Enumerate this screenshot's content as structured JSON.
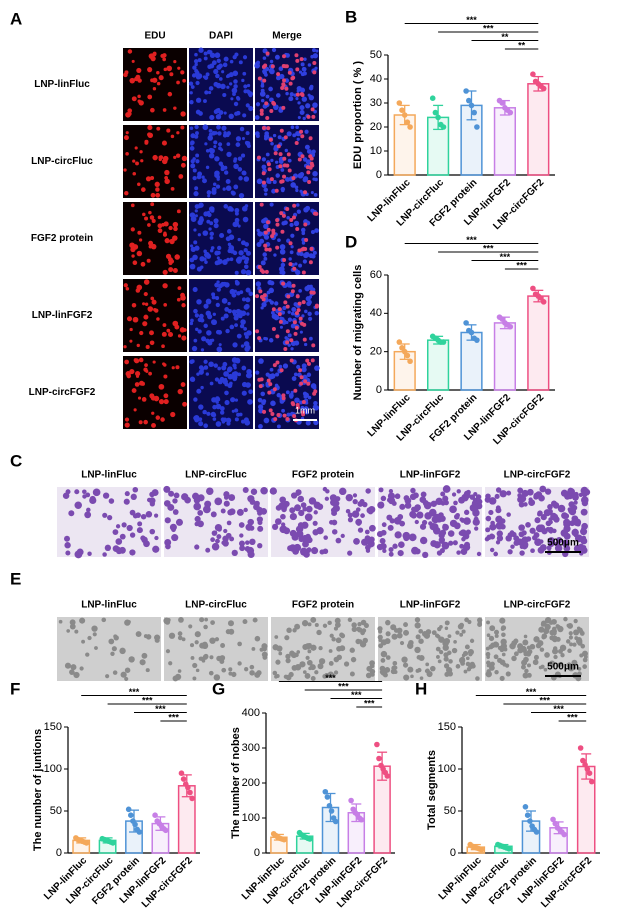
{
  "figure_a": {
    "label": "A",
    "columns": [
      "EDU",
      "DAPI",
      "Merge"
    ],
    "rows": [
      "LNP-linFluc",
      "LNP-circFluc",
      "FGF2 protein",
      "LNP-linFGF2",
      "LNP-circFGF2"
    ],
    "scale_bar": "1mm"
  },
  "figure_c": {
    "label": "C",
    "columns": [
      "LNP-linFluc",
      "LNP-circFluc",
      "FGF2 protein",
      "LNP-linFGF2",
      "LNP-circFGF2"
    ],
    "scale_bar": "500μm"
  },
  "figure_e": {
    "label": "E",
    "columns": [
      "LNP-linFluc",
      "LNP-circFluc",
      "FGF2 protein",
      "LNP-linFGF2",
      "LNP-circFGF2"
    ],
    "scale_bar": "500μm"
  },
  "chart_data": [
    {
      "type": "bar",
      "label": "B",
      "ylabel": "EDU proportion ( % )",
      "categories": [
        "LNP-linFluc",
        "LNP-circFluc",
        "FGF2 protein",
        "LNP-linFGF2",
        "LNP-circFGF2"
      ],
      "colors": [
        "#f4a85a",
        "#2fd39c",
        "#4f93d6",
        "#c77fe6",
        "#ee4f82"
      ],
      "values": [
        25,
        24,
        29,
        28,
        38
      ],
      "errors": [
        4,
        5,
        6,
        3,
        3
      ],
      "points": [
        [
          30,
          27,
          25,
          22,
          20
        ],
        [
          32,
          26,
          24,
          21,
          20
        ],
        [
          35,
          31,
          29,
          26,
          20
        ],
        [
          31,
          30,
          28,
          27,
          26
        ],
        [
          42,
          39,
          38,
          37,
          36
        ]
      ],
      "ylim": [
        0,
        50
      ],
      "yticks": [
        0,
        10,
        20,
        30,
        40,
        50
      ],
      "significance": [
        "***",
        "***",
        "**",
        "**"
      ]
    },
    {
      "type": "bar",
      "label": "D",
      "ylabel": "Number of migrating cells",
      "categories": [
        "LNP-linFluc",
        "LNP-circFluc",
        "FGF2 protein",
        "LNP-linFGF2",
        "LNP-circFGF2"
      ],
      "colors": [
        "#f4a85a",
        "#2fd39c",
        "#4f93d6",
        "#c77fe6",
        "#ee4f82"
      ],
      "values": [
        20,
        26,
        30,
        35,
        49
      ],
      "errors": [
        4,
        2,
        4,
        3,
        3
      ],
      "points": [
        [
          25,
          22,
          20,
          18,
          15
        ],
        [
          28,
          27,
          26,
          25,
          25
        ],
        [
          35,
          31,
          30,
          27,
          26
        ],
        [
          38,
          37,
          35,
          34,
          33
        ],
        [
          53,
          50,
          49,
          48,
          46
        ]
      ],
      "ylim": [
        0,
        60
      ],
      "yticks": [
        0,
        20,
        40,
        60
      ],
      "significance": [
        "***",
        "***",
        "***",
        "***"
      ]
    },
    {
      "type": "bar",
      "label": "F",
      "ylabel": "The number of juntions",
      "categories": [
        "LNP-linFluc",
        "LNP-circFluc",
        "FGF2 protein",
        "LNP-linFGF2",
        "LNP-circFGF2"
      ],
      "colors": [
        "#f4a85a",
        "#2fd39c",
        "#4f93d6",
        "#c77fe6",
        "#ee4f82"
      ],
      "values": [
        15,
        15,
        38,
        35,
        80
      ],
      "errors": [
        3,
        3,
        13,
        8,
        13
      ],
      "points": [
        [
          18,
          16,
          15,
          14,
          13,
          12
        ],
        [
          17,
          16,
          15,
          14,
          13,
          12
        ],
        [
          52,
          45,
          38,
          34,
          28,
          25
        ],
        [
          45,
          38,
          35,
          32,
          29,
          27
        ],
        [
          95,
          88,
          82,
          78,
          72,
          65
        ]
      ],
      "ylim": [
        0,
        150
      ],
      "yticks": [
        0,
        50,
        100,
        150
      ],
      "significance": [
        "***",
        "***",
        "***",
        "***"
      ]
    },
    {
      "type": "bar",
      "label": "G",
      "ylabel": "The number of nobes",
      "categories": [
        "LNP-linFluc",
        "LNP-circFluc",
        "FGF2 protein",
        "LNP-linFGF2",
        "LNP-circFGF2"
      ],
      "colors": [
        "#f4a85a",
        "#2fd39c",
        "#4f93d6",
        "#c77fe6",
        "#ee4f82"
      ],
      "values": [
        45,
        48,
        130,
        115,
        248
      ],
      "errors": [
        8,
        8,
        40,
        25,
        40
      ],
      "points": [
        [
          55,
          50,
          45,
          42,
          40,
          38
        ],
        [
          58,
          52,
          48,
          45,
          42,
          40
        ],
        [
          175,
          160,
          135,
          120,
          100,
          90
        ],
        [
          150,
          125,
          115,
          110,
          100,
          95
        ],
        [
          310,
          270,
          250,
          240,
          230,
          220
        ]
      ],
      "ylim": [
        0,
        400
      ],
      "yticks": [
        0,
        100,
        200,
        300,
        400
      ],
      "significance": [
        "***",
        "***",
        "***",
        "***"
      ]
    },
    {
      "type": "bar",
      "label": "H",
      "ylabel": "Total segments",
      "categories": [
        "LNP-linFluc",
        "LNP-circFluc",
        "FGF2 protein",
        "LNP-linFGF2",
        "LNP-circFGF2"
      ],
      "colors": [
        "#f4a85a",
        "#2fd39c",
        "#4f93d6",
        "#c77fe6",
        "#ee4f82"
      ],
      "values": [
        7,
        8,
        38,
        30,
        103
      ],
      "errors": [
        3,
        2,
        12,
        7,
        15
      ],
      "points": [
        [
          10,
          8,
          7,
          6,
          5,
          4
        ],
        [
          10,
          9,
          8,
          7,
          6,
          5
        ],
        [
          55,
          45,
          38,
          32,
          28,
          25
        ],
        [
          40,
          35,
          30,
          28,
          25,
          22
        ],
        [
          125,
          110,
          105,
          100,
          95,
          85
        ]
      ],
      "ylim": [
        0,
        150
      ],
      "yticks": [
        0,
        50,
        100,
        150
      ],
      "significance": [
        "***",
        "***",
        "***",
        "***"
      ]
    }
  ]
}
